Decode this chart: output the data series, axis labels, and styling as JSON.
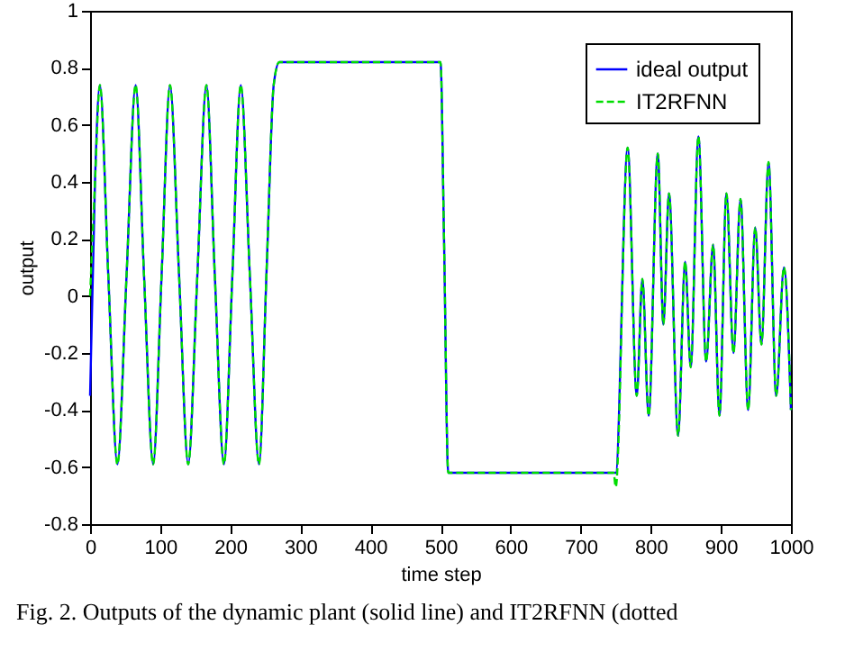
{
  "chart_data": {
    "type": "line",
    "xlabel": "time step",
    "ylabel": "output",
    "annotations": [
      "Fig. 2. Outputs of the dynamic plant (solid line) and IT2RFNN (dotted"
    ],
    "x": [
      0,
      7,
      14,
      26,
      39,
      52,
      65,
      77,
      90,
      102,
      114,
      127,
      140,
      153,
      166,
      178,
      191,
      203,
      215,
      228,
      241,
      252,
      262,
      270,
      500,
      505,
      511,
      747,
      750,
      767,
      780,
      788,
      797,
      810,
      818,
      826,
      839,
      849,
      857,
      868,
      879,
      889,
      898,
      908,
      918,
      928,
      939,
      949,
      958,
      968,
      979,
      990,
      1000
    ],
    "series": [
      {
        "name": "ideal output",
        "color": "#0000ff",
        "line_style": "solid",
        "values": [
          -0.35,
          0.4,
          0.74,
          0.07,
          -0.59,
          0.07,
          0.74,
          0.07,
          -0.59,
          0.07,
          0.74,
          0.07,
          -0.59,
          0.07,
          0.74,
          0.07,
          -0.59,
          0.07,
          0.74,
          0.07,
          -0.59,
          0.1,
          0.74,
          0.82,
          0.82,
          0.2,
          -0.62,
          -0.62,
          -0.62,
          0.52,
          -0.35,
          0.06,
          -0.42,
          0.5,
          -0.1,
          0.36,
          -0.49,
          0.12,
          -0.25,
          0.56,
          -0.23,
          0.18,
          -0.42,
          0.36,
          -0.2,
          0.34,
          -0.4,
          0.24,
          -0.17,
          0.47,
          -0.35,
          0.1,
          -0.4
        ]
      },
      {
        "name": "IT2RFNN",
        "color": "#00dd00",
        "line_style": "dashed",
        "values": [
          0,
          0.4,
          0.74,
          0.07,
          -0.59,
          0.07,
          0.74,
          0.07,
          -0.59,
          0.07,
          0.74,
          0.07,
          -0.59,
          0.07,
          0.74,
          0.07,
          -0.59,
          0.07,
          0.74,
          0.07,
          -0.59,
          0.1,
          0.74,
          0.82,
          0.82,
          0.2,
          -0.62,
          -0.62,
          -0.67,
          0.52,
          -0.35,
          0.06,
          -0.42,
          0.5,
          -0.1,
          0.36,
          -0.49,
          0.12,
          -0.25,
          0.56,
          -0.23,
          0.18,
          -0.42,
          0.36,
          -0.2,
          0.34,
          -0.4,
          0.24,
          -0.17,
          0.47,
          -0.35,
          0.1,
          -0.4
        ]
      }
    ],
    "xlim": [
      0,
      1000
    ],
    "xticks": [
      0,
      100,
      200,
      300,
      400,
      500,
      600,
      700,
      800,
      900,
      1000
    ],
    "ylim": [
      -0.8,
      1
    ],
    "yticks": [
      -0.8,
      -0.6,
      -0.4,
      -0.2,
      0,
      0.2,
      0.4,
      0.6,
      0.8,
      1
    ],
    "grid": false,
    "legend": "top right",
    "marker": "none"
  }
}
